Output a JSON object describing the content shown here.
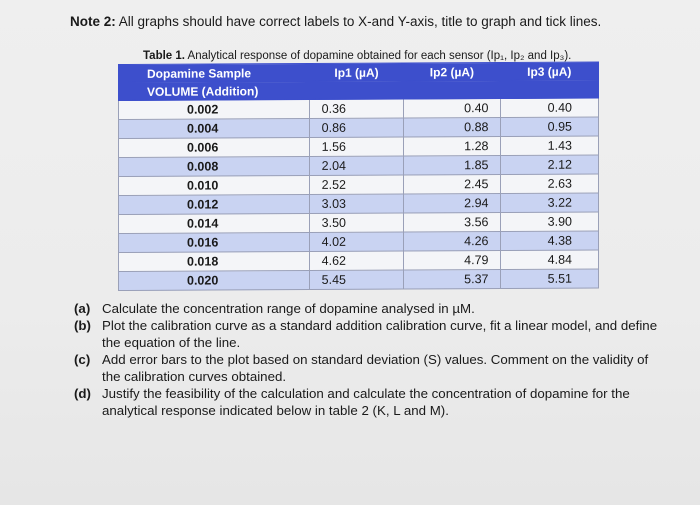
{
  "note": {
    "prefix": "Note 2:",
    "text": "All graphs should have correct labels to X-and Y-axis, title to graph and tick lines."
  },
  "table": {
    "caption_prefix": "Table 1.",
    "caption_text": "Analytical response of dopamine obtained for each sensor (Ip₁, Ip₂ and Ip₃).",
    "headers": [
      "Dopamine Sample",
      "Ip1 (µA)",
      "Ip2 (µA)",
      "Ip3 (µA)"
    ],
    "subheader": "VOLUME (Addition)",
    "rows": [
      [
        "0.002",
        "0.36",
        "0.40",
        "0.40"
      ],
      [
        "0.004",
        "0.86",
        "0.88",
        "0.95"
      ],
      [
        "0.006",
        "1.56",
        "1.28",
        "1.43"
      ],
      [
        "0.008",
        "2.04",
        "1.85",
        "2.12"
      ],
      [
        "0.010",
        "2.52",
        "2.45",
        "2.63"
      ],
      [
        "0.012",
        "3.03",
        "2.94",
        "3.22"
      ],
      [
        "0.014",
        "3.50",
        "3.56",
        "3.90"
      ],
      [
        "0.016",
        "4.02",
        "4.26",
        "4.38"
      ],
      [
        "0.018",
        "4.62",
        "4.79",
        "4.84"
      ],
      [
        "0.020",
        "5.45",
        "5.37",
        "5.51"
      ]
    ]
  },
  "questions": [
    {
      "label": "(a)",
      "text": "Calculate the concentration range of dopamine analysed in µM."
    },
    {
      "label": "(b)",
      "text": "Plot the calibration curve as a standard addition calibration curve, fit a linear model, and define the equation of the line."
    },
    {
      "label": "(c)",
      "text": "Add error bars to the plot based on standard deviation (S) values. Comment on the validity of the calibration curves obtained."
    },
    {
      "label": "(d)",
      "text": "Justify the feasibility of the calculation and calculate the concentration of dopamine for the analytical response indicated below in table 2 (K, L and M)."
    }
  ]
}
